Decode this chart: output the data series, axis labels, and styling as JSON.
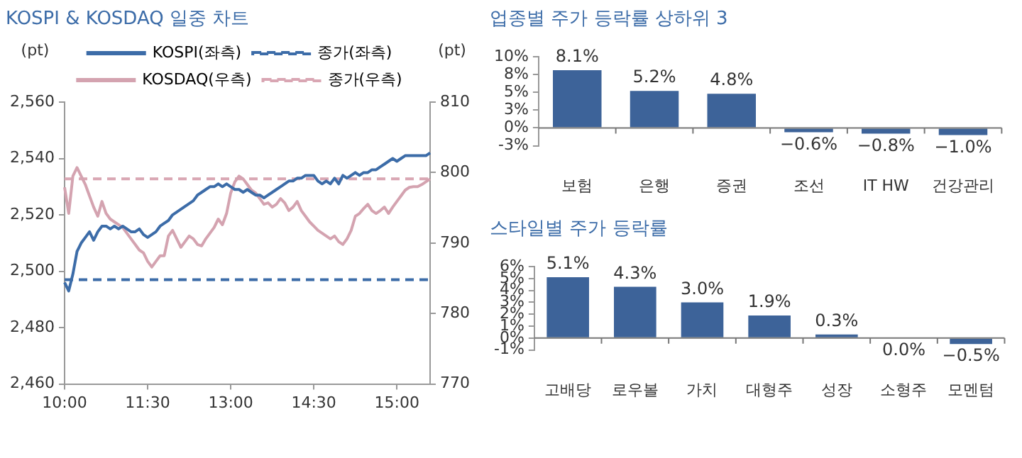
{
  "chart_data": [
    {
      "type": "line",
      "title": "KOSPI & KOSDAQ 일중 차트",
      "ylabel": "(pt)",
      "y2label": "(pt)",
      "categories": [
        "10:00",
        null,
        null,
        null,
        null,
        null,
        null,
        null,
        null,
        null,
        null,
        null,
        null,
        null,
        null,
        null,
        null,
        null,
        null,
        null,
        "11:30",
        null,
        null,
        null,
        null,
        null,
        null,
        null,
        null,
        null,
        null,
        null,
        null,
        null,
        null,
        null,
        null,
        null,
        null,
        null,
        "13:00",
        null,
        null,
        null,
        null,
        null,
        null,
        null,
        null,
        null,
        null,
        null,
        null,
        null,
        null,
        null,
        null,
        null,
        null,
        null,
        "14:30",
        null,
        null,
        null,
        null,
        null,
        null,
        null,
        null,
        null,
        null,
        null,
        null,
        null,
        null,
        null,
        null,
        null,
        null,
        null,
        "15:00",
        null,
        null,
        null,
        null,
        null,
        null,
        null,
        null
      ],
      "series": [
        {
          "name": "KOSPI(좌측)",
          "color": "#3c6ca8",
          "axis": "y",
          "values": [
            2496,
            2493,
            2499,
            2507,
            2510,
            2512,
            2514,
            2511,
            2514,
            2516,
            2516,
            2515,
            2516,
            2515,
            2516,
            2515,
            2514,
            2514,
            2515,
            2513,
            2512,
            2513,
            2514,
            2516,
            2517,
            2518,
            2520,
            2521,
            2522,
            2523,
            2524,
            2525,
            2527,
            2528,
            2529,
            2530,
            2530,
            2531,
            2530,
            2531,
            2530,
            2529,
            2529,
            2528,
            2529,
            2528,
            2527,
            2527,
            2526,
            2527,
            2528,
            2529,
            2530,
            2531,
            2532,
            2532,
            2533,
            2533,
            2534,
            2534,
            2534,
            2532,
            2531,
            2532,
            2531,
            2533,
            2531,
            2534,
            2533,
            2534,
            2535,
            2534,
            2535,
            2535,
            2536,
            2536,
            2537,
            2538,
            2539,
            2540,
            2539,
            2540,
            2541,
            2541,
            2541,
            2541,
            2541,
            2541,
            2542
          ]
        },
        {
          "name": "종가(좌측)",
          "color": "#3c6ca8",
          "axis": "y",
          "line_style": "dashed",
          "values": [
            2497,
            2497,
            2497,
            2497,
            2497,
            2497,
            2497,
            2497,
            2497,
            2497,
            2497,
            2497,
            2497,
            2497,
            2497,
            2497,
            2497,
            2497,
            2497,
            2497,
            2497,
            2497,
            2497,
            2497,
            2497,
            2497,
            2497,
            2497,
            2497,
            2497,
            2497,
            2497,
            2497,
            2497,
            2497,
            2497,
            2497,
            2497,
            2497,
            2497,
            2497,
            2497,
            2497,
            2497,
            2497,
            2497,
            2497,
            2497,
            2497,
            2497,
            2497,
            2497,
            2497,
            2497,
            2497,
            2497,
            2497,
            2497,
            2497,
            2497,
            2497,
            2497,
            2497,
            2497,
            2497,
            2497,
            2497,
            2497,
            2497,
            2497,
            2497,
            2497,
            2497,
            2497,
            2497,
            2497,
            2497,
            2497,
            2497,
            2497,
            2497,
            2497,
            2497,
            2497,
            2497,
            2497,
            2497,
            2497,
            2497
          ]
        },
        {
          "name": "KOSDAQ(우측)",
          "color": "#d4a3b0",
          "axis": "y2",
          "values": [
            797.9,
            794.2,
            799.5,
            800.7,
            799.5,
            798.3,
            796.7,
            795.1,
            793.8,
            795.9,
            794.2,
            793.4,
            793.0,
            792.6,
            792.2,
            791.4,
            790.6,
            789.8,
            789.0,
            788.6,
            787.4,
            786.6,
            787.4,
            788.2,
            788.2,
            791.0,
            791.8,
            790.6,
            789.4,
            790.2,
            791.0,
            790.6,
            789.8,
            789.6,
            790.6,
            791.4,
            792.2,
            793.4,
            792.6,
            794.2,
            797.1,
            798.7,
            799.5,
            799.1,
            798.3,
            797.5,
            797.1,
            796.3,
            795.5,
            795.7,
            795.1,
            795.5,
            796.3,
            795.7,
            794.6,
            795.1,
            795.9,
            794.6,
            793.8,
            793.0,
            792.4,
            791.8,
            791.4,
            791.0,
            790.6,
            791.0,
            790.2,
            789.8,
            790.6,
            791.8,
            793.8,
            794.2,
            794.9,
            795.5,
            794.6,
            794.2,
            794.6,
            795.1,
            794.2,
            795.1,
            795.9,
            796.7,
            797.5,
            797.9,
            798.0,
            798.0,
            798.3,
            798.7,
            799.1
          ]
        },
        {
          "name": "종가(우측)",
          "color": "#d9a6b3",
          "axis": "y2",
          "line_style": "dashed",
          "values": [
            799.1,
            799.1,
            799.1,
            799.1,
            799.1,
            799.1,
            799.1,
            799.1,
            799.1,
            799.1,
            799.1,
            799.1,
            799.1,
            799.1,
            799.1,
            799.1,
            799.1,
            799.1,
            799.1,
            799.1,
            799.1,
            799.1,
            799.1,
            799.1,
            799.1,
            799.1,
            799.1,
            799.1,
            799.1,
            799.1,
            799.1,
            799.1,
            799.1,
            799.1,
            799.1,
            799.1,
            799.1,
            799.1,
            799.1,
            799.1,
            799.1,
            799.1,
            799.1,
            799.1,
            799.1,
            799.1,
            799.1,
            799.1,
            799.1,
            799.1,
            799.1,
            799.1,
            799.1,
            799.1,
            799.1,
            799.1,
            799.1,
            799.1,
            799.1,
            799.1,
            799.1,
            799.1,
            799.1,
            799.1,
            799.1,
            799.1,
            799.1,
            799.1,
            799.1,
            799.1,
            799.1,
            799.1,
            799.1,
            799.1,
            799.1,
            799.1,
            799.1,
            799.1,
            799.1,
            799.1,
            799.1,
            799.1,
            799.1,
            799.1,
            799.1,
            799.1,
            799.1,
            799.1,
            799.1
          ]
        }
      ],
      "ylim": [
        2460,
        2560
      ],
      "yticks": [
        {
          "value": 2460,
          "label": "2,460"
        },
        {
          "value": 2480,
          "label": "2,480"
        },
        {
          "value": 2500,
          "label": "2,500"
        },
        {
          "value": 2520,
          "label": "2,520"
        },
        {
          "value": 2540,
          "label": "2,540"
        },
        {
          "value": 2560,
          "label": "2,560"
        }
      ],
      "y2lim": [
        770,
        810
      ],
      "y2ticks": [
        770,
        780,
        790,
        800,
        810
      ],
      "legend": "top",
      "grid": false,
      "marker": "none",
      "line_style": "solid"
    },
    {
      "type": "bar",
      "title": "업종별 주가 등락률 상하위 3",
      "categories": [
        "보험",
        "은행",
        "증권",
        "조선",
        "IT HW",
        "건강관리"
      ],
      "values": [
        8.1,
        5.2,
        4.8,
        -0.6,
        -0.8,
        -1.0
      ],
      "color": "#3d6399",
      "value_labels": [
        "8.1%",
        "5.2%",
        "4.8%",
        "−0.6%",
        "−0.8%",
        "−1.0%"
      ],
      "ylim": [
        -2.5,
        10
      ],
      "yticks": [
        {
          "value": -2.5,
          "label": "-3%"
        },
        {
          "value": 0,
          "label": "0%"
        },
        {
          "value": 2.5,
          "label": "3%"
        },
        {
          "value": 5,
          "label": "5%"
        },
        {
          "value": 7.5,
          "label": "8%"
        },
        {
          "value": 10,
          "label": "10%"
        }
      ],
      "legend": false
    },
    {
      "type": "bar",
      "title": "스타일별 주가 등락률",
      "categories": [
        "고배당",
        "로우볼",
        "가치",
        "대형주",
        "성장",
        "소형주",
        "모멘텀"
      ],
      "values": [
        5.1,
        4.3,
        3.0,
        1.9,
        0.3,
        0.0,
        -0.5
      ],
      "color": "#3d6399",
      "value_labels": [
        "5.1%",
        "4.3%",
        "3.0%",
        "1.9%",
        "0.3%",
        "0.0%",
        "−0.5%"
      ],
      "ylim": [
        -1,
        6
      ],
      "yticks": [
        {
          "value": -1,
          "label": "-1%"
        },
        {
          "value": 0,
          "label": "0%"
        },
        {
          "value": 1,
          "label": "1%"
        },
        {
          "value": 2,
          "label": "2%"
        },
        {
          "value": 3,
          "label": "3%"
        },
        {
          "value": 4,
          "label": "4%"
        },
        {
          "value": 5,
          "label": "5%"
        },
        {
          "value": 6,
          "label": "6%"
        }
      ],
      "legend": false
    }
  ]
}
